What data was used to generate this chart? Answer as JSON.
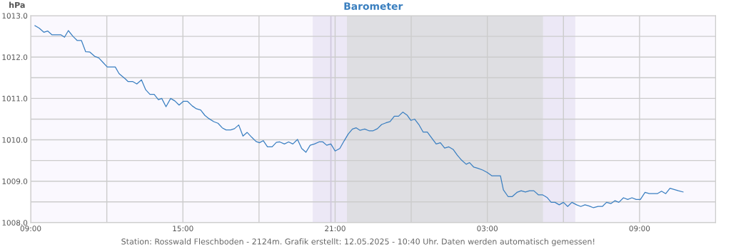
{
  "chart_data": {
    "type": "line",
    "title": "Barometer",
    "ylabel": "hPa",
    "annotations": [
      "Station: Rosswald Fleschboden - 2124m. Grafik erstellt: 12.05.2025 - 10:40 Uhr. Daten werden automatisch gemessen!"
    ],
    "x": [
      "2025-05-11T09:10",
      "2025-05-11T09:20",
      "2025-05-11T09:31",
      "2025-05-11T09:40",
      "2025-05-11T09:50",
      "2025-05-11T10:11",
      "2025-05-11T10:20",
      "2025-05-11T10:29",
      "2025-05-11T10:40",
      "2025-05-11T10:50",
      "2025-05-11T11:00",
      "2025-05-11T11:10",
      "2025-05-11T11:20",
      "2025-05-11T11:31",
      "2025-05-11T11:41",
      "2025-05-11T11:51",
      "2025-05-11T12:01",
      "2025-05-11T12:20",
      "2025-05-11T12:29",
      "2025-05-11T12:44",
      "2025-05-11T12:50",
      "2025-05-11T13:01",
      "2025-05-11T13:11",
      "2025-05-11T13:22",
      "2025-05-11T13:32",
      "2025-05-11T13:42",
      "2025-05-11T13:52",
      "2025-05-11T14:02",
      "2025-05-11T14:10",
      "2025-05-11T14:20",
      "2025-05-11T14:31",
      "2025-05-11T14:41",
      "2025-05-11T14:51",
      "2025-05-11T15:01",
      "2025-05-11T15:11",
      "2025-05-11T15:22",
      "2025-05-11T15:32",
      "2025-05-11T15:42",
      "2025-05-11T15:52",
      "2025-05-11T16:02",
      "2025-05-11T16:13",
      "2025-05-11T16:23",
      "2025-05-11T16:33",
      "2025-05-11T16:42",
      "2025-05-11T16:53",
      "2025-05-11T17:02",
      "2025-05-11T17:12",
      "2025-05-11T17:22",
      "2025-05-11T17:32",
      "2025-05-11T17:43",
      "2025-05-11T17:53",
      "2025-05-11T18:01",
      "2025-05-11T18:10",
      "2025-05-11T18:20",
      "2025-05-11T18:31",
      "2025-05-11T18:41",
      "2025-05-11T18:49",
      "2025-05-11T19:00",
      "2025-05-11T19:10",
      "2025-05-11T19:20",
      "2025-05-11T19:31",
      "2025-05-11T19:41",
      "2025-05-11T19:51",
      "2025-05-11T20:01",
      "2025-05-11T20:11",
      "2025-05-11T20:22",
      "2025-05-11T20:31",
      "2025-05-11T20:40",
      "2025-05-11T20:50",
      "2025-05-11T21:00",
      "2025-05-11T21:11",
      "2025-05-11T21:21",
      "2025-05-11T21:31",
      "2025-05-11T21:41",
      "2025-05-11T21:50",
      "2025-05-11T21:59",
      "2025-05-11T22:10",
      "2025-05-11T22:20",
      "2025-05-11T22:30",
      "2025-05-11T22:40",
      "2025-05-11T22:50",
      "2025-05-11T23:00",
      "2025-05-11T23:10",
      "2025-05-11T23:20",
      "2025-05-11T23:30",
      "2025-05-11T23:40",
      "2025-05-11T23:50",
      "2025-05-11T23:59",
      "2025-05-12T00:08",
      "2025-05-12T00:18",
      "2025-05-12T00:28",
      "2025-05-12T00:38",
      "2025-05-12T00:48",
      "2025-05-12T00:59",
      "2025-05-12T01:09",
      "2025-05-12T01:19",
      "2025-05-12T01:29",
      "2025-05-12T01:39",
      "2025-05-12T01:49",
      "2025-05-12T01:59",
      "2025-05-12T02:10",
      "2025-05-12T02:18",
      "2025-05-12T02:28",
      "2025-05-12T02:38",
      "2025-05-12T02:49",
      "2025-05-12T03:00",
      "2025-05-12T03:11",
      "2025-05-12T03:31",
      "2025-05-12T03:38",
      "2025-05-12T03:49",
      "2025-05-12T03:59",
      "2025-05-12T04:10",
      "2025-05-12T04:20",
      "2025-05-12T04:30",
      "2025-05-12T04:40",
      "2025-05-12T04:50",
      "2025-05-12T05:01",
      "2025-05-12T05:11",
      "2025-05-12T05:21",
      "2025-05-12T05:31",
      "2025-05-12T05:40",
      "2025-05-12T05:50",
      "2025-05-12T06:00",
      "2025-05-12T06:10",
      "2025-05-12T06:20",
      "2025-05-12T06:31",
      "2025-05-12T06:41",
      "2025-05-12T06:51",
      "2025-05-12T07:01",
      "2025-05-12T07:11",
      "2025-05-12T07:22",
      "2025-05-12T07:32",
      "2025-05-12T07:42",
      "2025-05-12T07:52",
      "2025-05-12T08:02",
      "2025-05-12T08:11",
      "2025-05-12T08:22",
      "2025-05-12T08:32",
      "2025-05-12T08:42",
      "2025-05-12T08:52",
      "2025-05-12T09:02",
      "2025-05-12T09:13",
      "2025-05-12T09:23",
      "2025-05-12T09:42",
      "2025-05-12T09:52",
      "2025-05-12T10:02",
      "2025-05-12T10:12",
      "2025-05-12T10:22",
      "2025-05-12T10:32",
      "2025-05-12T10:43"
    ],
    "series": [
      {
        "color": "#3a7fc1",
        "values": [
          1012.76,
          1012.7,
          1012.6,
          1012.63,
          1012.54,
          1012.54,
          1012.48,
          1012.64,
          1012.5,
          1012.4,
          1012.4,
          1012.13,
          1012.12,
          1012.02,
          1011.98,
          1011.87,
          1011.76,
          1011.76,
          1011.6,
          1011.47,
          1011.41,
          1011.41,
          1011.35,
          1011.45,
          1011.21,
          1011.1,
          1011.1,
          1010.97,
          1011.0,
          1010.8,
          1011.0,
          1010.94,
          1010.84,
          1010.93,
          1010.93,
          1010.82,
          1010.75,
          1010.72,
          1010.59,
          1010.51,
          1010.44,
          1010.4,
          1010.29,
          1010.24,
          1010.24,
          1010.27,
          1010.36,
          1010.09,
          1010.18,
          1010.06,
          1009.96,
          1009.93,
          1009.98,
          1009.83,
          1009.83,
          1009.94,
          1009.95,
          1009.9,
          1009.95,
          1009.9,
          1010.01,
          1009.79,
          1009.7,
          1009.87,
          1009.9,
          1009.95,
          1009.95,
          1009.87,
          1009.9,
          1009.73,
          1009.79,
          1009.97,
          1010.14,
          1010.26,
          1010.29,
          1010.23,
          1010.26,
          1010.22,
          1010.22,
          1010.27,
          1010.37,
          1010.41,
          1010.44,
          1010.57,
          1010.57,
          1010.67,
          1010.6,
          1010.47,
          1010.5,
          1010.37,
          1010.19,
          1010.19,
          1010.05,
          1009.9,
          1009.93,
          1009.8,
          1009.83,
          1009.77,
          1009.63,
          1009.51,
          1009.41,
          1009.45,
          1009.34,
          1009.31,
          1009.27,
          1009.21,
          1009.13,
          1009.13,
          1008.79,
          1008.63,
          1008.63,
          1008.73,
          1008.77,
          1008.74,
          1008.77,
          1008.77,
          1008.67,
          1008.67,
          1008.61,
          1008.49,
          1008.49,
          1008.43,
          1008.49,
          1008.39,
          1008.49,
          1008.43,
          1008.39,
          1008.43,
          1008.4,
          1008.36,
          1008.39,
          1008.39,
          1008.49,
          1008.46,
          1008.53,
          1008.49,
          1008.6,
          1008.56,
          1008.6,
          1008.56,
          1008.56,
          1008.73,
          1008.7,
          1008.7,
          1008.76,
          1008.7,
          1008.83,
          1008.8,
          1008.77,
          1008.74
        ]
      }
    ],
    "xlim": [
      "2025-05-11T09:00",
      "2025-05-12T12:00"
    ],
    "xticks": [
      {
        "value": "2025-05-11T09:00",
        "label": "09:00"
      },
      {
        "value": "2025-05-11T12:00",
        "label": null
      },
      {
        "value": "2025-05-11T15:00",
        "label": "15:00"
      },
      {
        "value": "2025-05-11T18:00",
        "label": null
      },
      {
        "value": "2025-05-11T21:00",
        "label": "21:00"
      },
      {
        "value": "2025-05-12T00:00",
        "label": null
      },
      {
        "value": "2025-05-12T03:00",
        "label": "03:00"
      },
      {
        "value": "2025-05-12T06:00",
        "label": null
      },
      {
        "value": "2025-05-12T09:00",
        "label": "09:00"
      },
      {
        "value": "2025-05-12T12:00",
        "label": null
      }
    ],
    "ylim": [
      1008.0,
      1013.0
    ],
    "yticks": [
      {
        "value": 1008,
        "label": "1008.0"
      },
      {
        "value": 1008.5,
        "label": null
      },
      {
        "value": 1009,
        "label": "1009.0"
      },
      {
        "value": 1009.5,
        "label": null
      },
      {
        "value": 1010,
        "label": "1010.0"
      },
      {
        "value": 1010.5,
        "label": null
      },
      {
        "value": 1011,
        "label": "1011.0"
      },
      {
        "value": 1011.5,
        "label": null
      },
      {
        "value": 1012,
        "label": "1012.0"
      },
      {
        "value": 1012.5,
        "label": null
      },
      {
        "value": 1013,
        "label": "1013.0"
      }
    ],
    "bands": [
      {
        "axis": "x",
        "from": "2025-05-11T20:07",
        "to": "2025-05-11T21:28",
        "color": "#ece8f6"
      },
      {
        "axis": "x",
        "from": "2025-05-11T21:28",
        "to": "2025-05-12T05:12",
        "color": "#dedee2"
      },
      {
        "axis": "x",
        "from": "2025-05-12T05:12",
        "to": "2025-05-12T06:28",
        "color": "#ece8f6"
      }
    ],
    "ref_lines": [
      {
        "axis": "x",
        "value": "2025-05-11T20:50",
        "color": "#cfc8dc",
        "line_style": "solid"
      }
    ],
    "grid": true,
    "marker": "none",
    "line_style": "solid",
    "legend": false
  }
}
